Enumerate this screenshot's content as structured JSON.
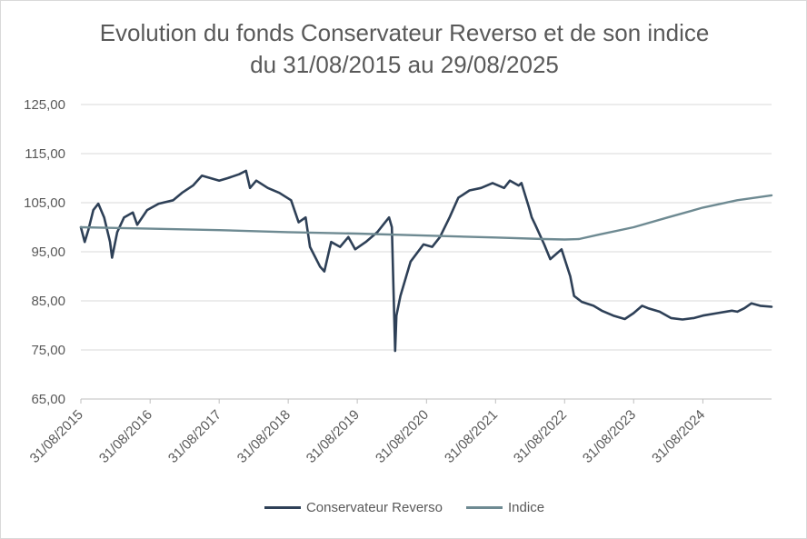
{
  "chart_data": {
    "type": "line",
    "title_lines": [
      "Evolution du fonds Conservateur Reverso et de son indice",
      "du 31/08/2015 au 29/08/2025"
    ],
    "xlabel": "",
    "ylabel": "",
    "ylim": [
      65,
      125
    ],
    "yticks": [
      "65,00",
      "75,00",
      "85,00",
      "95,00",
      "105,00",
      "115,00",
      "125,00"
    ],
    "xlim": [
      "2015-08-31",
      "2025-08-29"
    ],
    "xticks": [
      {
        "date": "2015-08-31",
        "label": "31/08/2015"
      },
      {
        "date": "2016-08-31",
        "label": "31/08/2016"
      },
      {
        "date": "2017-08-31",
        "label": "31/08/2017"
      },
      {
        "date": "2018-08-31",
        "label": "31/08/2018"
      },
      {
        "date": "2019-08-31",
        "label": "31/08/2019"
      },
      {
        "date": "2020-08-31",
        "label": "31/08/2020"
      },
      {
        "date": "2021-08-31",
        "label": "31/08/2021"
      },
      {
        "date": "2022-08-31",
        "label": "31/08/2022"
      },
      {
        "date": "2023-08-31",
        "label": "31/08/2023"
      },
      {
        "date": "2024-08-31",
        "label": "31/08/2024"
      }
    ],
    "grid": true,
    "legend": "bottom",
    "series": [
      {
        "name": "Conservateur Reverso",
        "color": "#2e4057",
        "points": [
          [
            "2015-08-31",
            100.0
          ],
          [
            "2015-09-20",
            97.0
          ],
          [
            "2015-10-10",
            99.5
          ],
          [
            "2015-11-05",
            103.5
          ],
          [
            "2015-12-01",
            104.8
          ],
          [
            "2016-01-01",
            102.0
          ],
          [
            "2016-02-01",
            97.0
          ],
          [
            "2016-02-12",
            93.8
          ],
          [
            "2016-03-10",
            99.0
          ],
          [
            "2016-04-15",
            102.0
          ],
          [
            "2016-06-01",
            103.0
          ],
          [
            "2016-06-24",
            100.5
          ],
          [
            "2016-08-15",
            103.5
          ],
          [
            "2016-10-15",
            104.8
          ],
          [
            "2016-12-31",
            105.5
          ],
          [
            "2017-02-15",
            107.0
          ],
          [
            "2017-04-15",
            108.5
          ],
          [
            "2017-06-01",
            110.5
          ],
          [
            "2017-08-31",
            109.5
          ],
          [
            "2017-10-15",
            110.0
          ],
          [
            "2017-12-15",
            110.8
          ],
          [
            "2018-01-20",
            111.5
          ],
          [
            "2018-02-10",
            108.0
          ],
          [
            "2018-03-15",
            109.5
          ],
          [
            "2018-05-15",
            108.0
          ],
          [
            "2018-07-15",
            107.0
          ],
          [
            "2018-09-15",
            105.5
          ],
          [
            "2018-10-25",
            101.0
          ],
          [
            "2018-12-01",
            102.0
          ],
          [
            "2018-12-24",
            96.0
          ],
          [
            "2019-02-15",
            92.0
          ],
          [
            "2019-03-10",
            91.0
          ],
          [
            "2019-04-15",
            97.0
          ],
          [
            "2019-06-01",
            96.0
          ],
          [
            "2019-07-15",
            98.0
          ],
          [
            "2019-08-20",
            95.5
          ],
          [
            "2019-10-15",
            97.0
          ],
          [
            "2019-12-15",
            99.0
          ],
          [
            "2020-01-15",
            100.5
          ],
          [
            "2020-02-15",
            102.0
          ],
          [
            "2020-03-01",
            100.0
          ],
          [
            "2020-03-09",
            88.0
          ],
          [
            "2020-03-18",
            74.8
          ],
          [
            "2020-03-25",
            82.0
          ],
          [
            "2020-04-15",
            86.0
          ],
          [
            "2020-06-08",
            93.0
          ],
          [
            "2020-08-15",
            96.5
          ],
          [
            "2020-09-30",
            96.0
          ],
          [
            "2020-11-10",
            98.0
          ],
          [
            "2020-12-31",
            102.0
          ],
          [
            "2021-02-15",
            106.0
          ],
          [
            "2021-04-15",
            107.5
          ],
          [
            "2021-06-15",
            108.0
          ],
          [
            "2021-08-15",
            109.0
          ],
          [
            "2021-10-15",
            108.0
          ],
          [
            "2021-11-15",
            109.5
          ],
          [
            "2021-12-31",
            108.5
          ],
          [
            "2022-01-15",
            109.0
          ],
          [
            "2022-02-24",
            104.0
          ],
          [
            "2022-03-10",
            102.0
          ],
          [
            "2022-03-29",
            100.5
          ],
          [
            "2022-05-15",
            96.5
          ],
          [
            "2022-06-16",
            93.5
          ],
          [
            "2022-08-15",
            95.5
          ],
          [
            "2022-09-30",
            90.0
          ],
          [
            "2022-10-20",
            86.0
          ],
          [
            "2022-11-30",
            84.8
          ],
          [
            "2023-01-31",
            84.0
          ],
          [
            "2023-03-15",
            83.0
          ],
          [
            "2023-05-15",
            82.0
          ],
          [
            "2023-07-15",
            81.3
          ],
          [
            "2023-08-31",
            82.5
          ],
          [
            "2023-10-15",
            84.0
          ],
          [
            "2023-11-15",
            83.5
          ],
          [
            "2024-01-15",
            82.8
          ],
          [
            "2024-03-15",
            81.5
          ],
          [
            "2024-05-15",
            81.2
          ],
          [
            "2024-07-15",
            81.5
          ],
          [
            "2024-08-31",
            82.0
          ],
          [
            "2024-11-15",
            82.5
          ],
          [
            "2025-01-31",
            83.0
          ],
          [
            "2025-03-01",
            82.8
          ],
          [
            "2025-04-08",
            83.5
          ],
          [
            "2025-05-15",
            84.5
          ],
          [
            "2025-06-30",
            84.0
          ],
          [
            "2025-08-29",
            83.8
          ]
        ]
      },
      {
        "name": "Indice",
        "color": "#6e8a92",
        "points": [
          [
            "2015-08-31",
            100.0
          ],
          [
            "2016-08-31",
            99.7
          ],
          [
            "2017-08-31",
            99.4
          ],
          [
            "2018-08-31",
            99.0
          ],
          [
            "2019-08-31",
            98.7
          ],
          [
            "2020-08-31",
            98.3
          ],
          [
            "2021-08-31",
            97.9
          ],
          [
            "2022-05-15",
            97.6
          ],
          [
            "2022-08-31",
            97.5
          ],
          [
            "2022-11-15",
            97.6
          ],
          [
            "2023-03-01",
            98.5
          ],
          [
            "2023-08-31",
            100.0
          ],
          [
            "2024-02-28",
            102.0
          ],
          [
            "2024-08-31",
            104.0
          ],
          [
            "2025-02-28",
            105.5
          ],
          [
            "2025-08-29",
            106.5
          ]
        ]
      }
    ]
  }
}
